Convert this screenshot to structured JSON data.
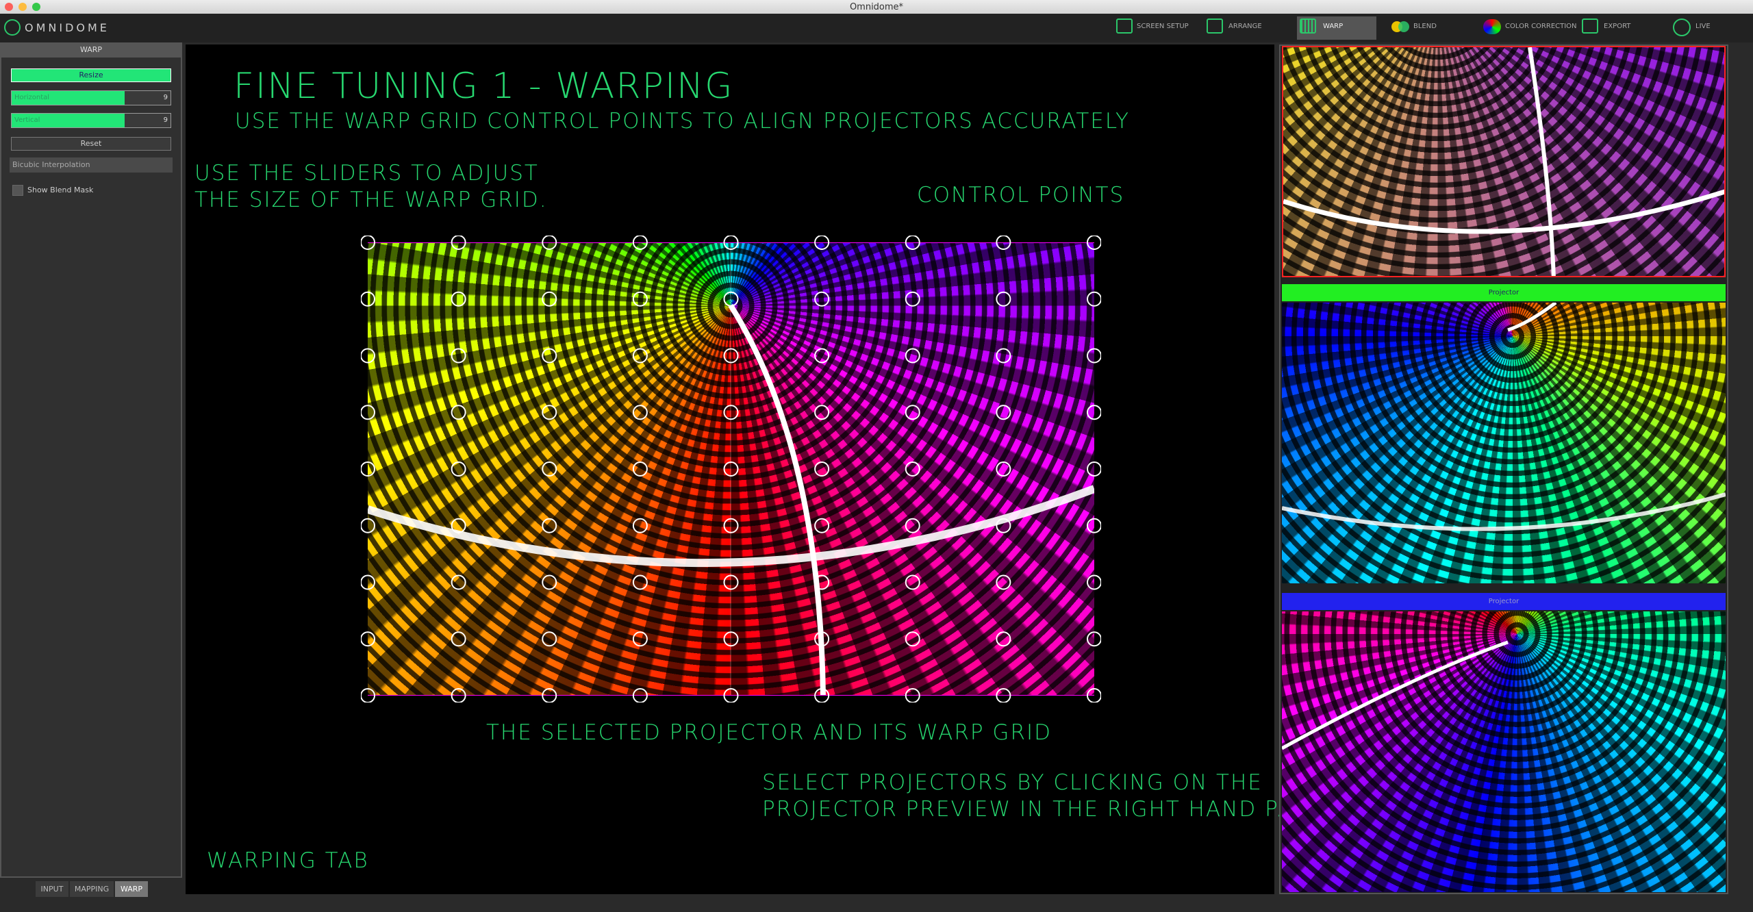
{
  "window": {
    "title": "Omnidome*"
  },
  "toolbar": {
    "logo": "OMNIDOME",
    "items": [
      "SCREEN SETUP",
      "ARRANGE",
      "WARP",
      "BLEND",
      "COLOR CORRECTION",
      "EXPORT",
      "LIVE"
    ]
  },
  "left_panel": {
    "header": "WARP",
    "resize_button": "Resize",
    "sliders": [
      {
        "label": "Horizontal",
        "value": 9
      },
      {
        "label": "Vertical",
        "value": 9
      }
    ],
    "reset_button": "Reset",
    "interpolation": "Bicubic Interpolation",
    "checkbox": "Show Blend Mask",
    "tabs": [
      "INPUT",
      "MAPPING",
      "WARP"
    ]
  },
  "annotations": {
    "title": "FINE TUNING 1 - WARPING",
    "subtitle": "USE THE WARP GRID CONTROL POINTS TO ALIGN PROJECTORS ACCURATELY",
    "sliders_note": [
      "USE THE SLIDERS TO ADJUST",
      "THE SIZE OF THE WARP GRID."
    ],
    "control_points": "CONTROL POINTS",
    "selected_projector": "THE SELECTED PROJECTOR AND ITS WARP GRID",
    "select_note": [
      "SELECT PROJECTORS BY CLICKING ON THE",
      "PROJECTOR PREVIEW IN THE RIGHT HAND PANEL"
    ],
    "warping_tab": "WARPING TAB"
  },
  "projectors": [
    "Projector",
    "Projector"
  ]
}
